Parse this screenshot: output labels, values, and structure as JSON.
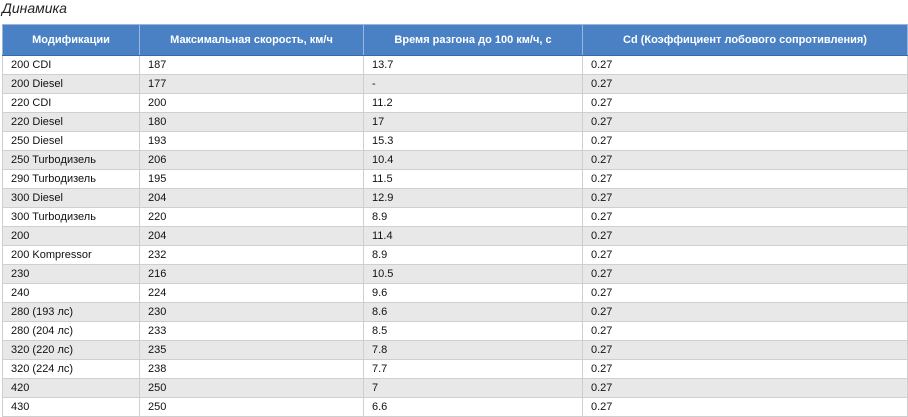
{
  "title": "Динамика",
  "table": {
    "headers": [
      "Модификации",
      "Максимальная скорость, км/ч",
      "Время разгона до 100 км/ч, с",
      "Cd (Коэффициент лобового сопротивления)"
    ],
    "rows": [
      [
        "200 CDI",
        "187",
        "13.7",
        "0.27"
      ],
      [
        "200 Diesel",
        "177",
        "-",
        "0.27"
      ],
      [
        "220 CDI",
        "200",
        "11.2",
        "0.27"
      ],
      [
        "220 Diesel",
        "180",
        "17",
        "0.27"
      ],
      [
        "250 Diesel",
        "193",
        "15.3",
        "0.27"
      ],
      [
        "250 Turboдизель",
        "206",
        "10.4",
        "0.27"
      ],
      [
        "290 Turboдизель",
        "195",
        "11.5",
        "0.27"
      ],
      [
        "300 Diesel",
        "204",
        "12.9",
        "0.27"
      ],
      [
        "300 Turboдизель",
        "220",
        "8.9",
        "0.27"
      ],
      [
        "200",
        "204",
        "11.4",
        "0.27"
      ],
      [
        "200 Kompressor",
        "232",
        "8.9",
        "0.27"
      ],
      [
        "230",
        "216",
        "10.5",
        "0.27"
      ],
      [
        "240",
        "224",
        "9.6",
        "0.27"
      ],
      [
        "280 (193 лс)",
        "230",
        "8.6",
        "0.27"
      ],
      [
        "280 (204 лс)",
        "233",
        "8.5",
        "0.27"
      ],
      [
        "320 (220 лс)",
        "235",
        "7.8",
        "0.27"
      ],
      [
        "320 (224 лс)",
        "238",
        "7.7",
        "0.27"
      ],
      [
        "420",
        "250",
        "7",
        "0.27"
      ],
      [
        "430",
        "250",
        "6.6",
        "0.27"
      ]
    ]
  }
}
